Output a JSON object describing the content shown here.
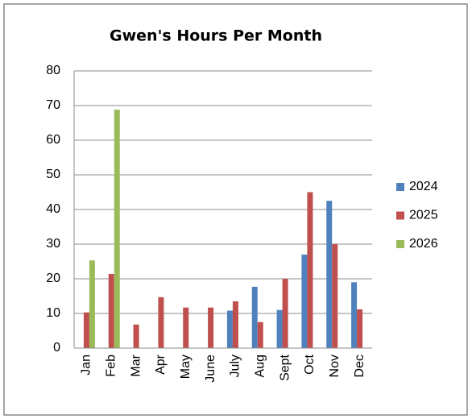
{
  "chart_data": {
    "type": "bar",
    "title": "Gwen's Hours Per Month",
    "categories": [
      "Jan",
      "Feb",
      "Mar",
      "Apr",
      "May",
      "June",
      "July",
      "Aug",
      "Sept",
      "Oct",
      "Nov",
      "Dec"
    ],
    "series": [
      {
        "name": "2024",
        "color": "#4f81bd",
        "values": [
          null,
          null,
          null,
          null,
          null,
          null,
          10.8,
          17.7,
          11,
          27,
          42.5,
          19
        ]
      },
      {
        "name": "2025",
        "color": "#c0504d",
        "values": [
          10.3,
          21.4,
          6.8,
          14.7,
          11.7,
          11.7,
          13.5,
          7.5,
          20,
          45,
          30,
          11.2
        ]
      },
      {
        "name": "2026",
        "color": "#9bbb59",
        "values": [
          25.3,
          68.8,
          null,
          null,
          null,
          null,
          null,
          null,
          null,
          null,
          null,
          null
        ]
      }
    ],
    "ylim": [
      0,
      80
    ],
    "yticks": [
      0,
      10,
      20,
      30,
      40,
      50,
      60,
      70,
      80
    ],
    "grid": true,
    "legend": "right"
  }
}
